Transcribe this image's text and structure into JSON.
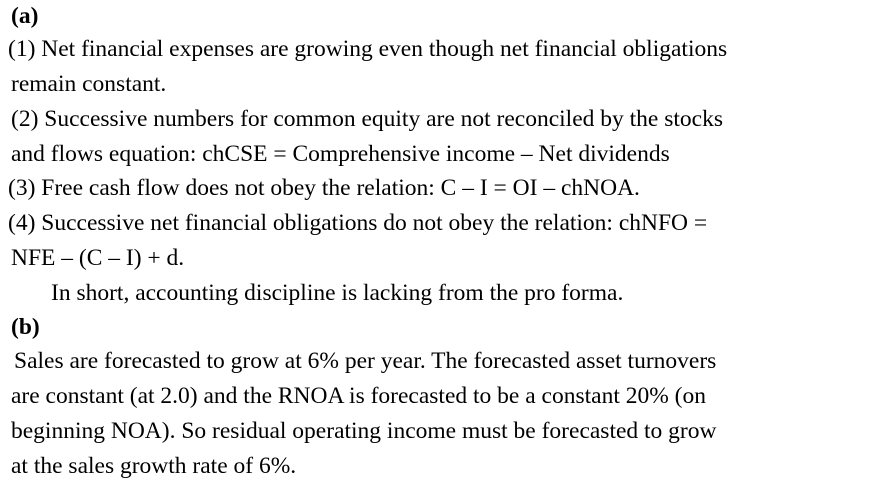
{
  "part_a": {
    "heading": "(a)",
    "lines": [
      "(1)  Net financial expenses are growing even though net financial obligations",
      "remain constant.",
      "(2)  Successive numbers for common equity are not reconciled by the stocks",
      "and flows equation: chCSE = Comprehensive income – Net dividends",
      "(3)  Free cash flow does not obey the relation: C – I = OI – chNOA.",
      "(4)  Successive net financial obligations do not obey the relation: chNFO =",
      "NFE – (C – I) + d.",
      "In short, accounting discipline is lacking from the pro forma."
    ]
  },
  "part_b": {
    "heading": "(b)",
    "lines": [
      "Sales are forecasted to grow at 6% per year. The forecasted asset turnovers",
      "are constant (at 2.0) and the RNOA is forecasted to be a constant 20% (on",
      "beginning NOA).  So residual operating income must be forecasted to grow",
      "at the sales growth rate of 6%."
    ]
  }
}
